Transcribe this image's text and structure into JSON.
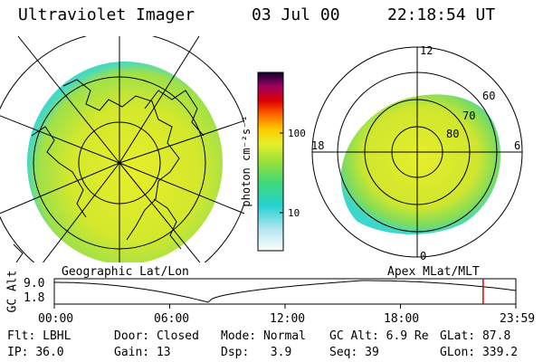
{
  "header": {
    "instrument": "Ultraviolet Imager",
    "date": "03 Jul 00",
    "time": "22:18:54 UT"
  },
  "colorbar": {
    "unit_label": "photon cm⁻²s⁻¹",
    "ticks": [
      "100",
      "10"
    ]
  },
  "polar_plot": {
    "ring_labels": [
      "60",
      "70",
      "80"
    ],
    "mlt_labels": {
      "top": "12",
      "left": "18",
      "right": "6",
      "bottom": "0"
    }
  },
  "panel_titles": {
    "left": "Geographic Lat/Lon",
    "right": "Apex MLat/MLT"
  },
  "altitude_strip": {
    "axis_label": "GC Alt",
    "y_ticks": [
      "9.0",
      "1.8"
    ],
    "x_ticks": [
      "00:00",
      "06:00",
      "12:00",
      "18:00",
      "23:59"
    ],
    "current_time_marker_hour": 22.3
  },
  "status": {
    "row1": [
      {
        "label": "Flt:",
        "value": "LBHL"
      },
      {
        "label": "Door:",
        "value": "Closed"
      },
      {
        "label": "Mode:",
        "value": "Normal"
      },
      {
        "label": "GC Alt:",
        "value": "6.9 Re"
      },
      {
        "label": "GLat:",
        "value": "87.8"
      }
    ],
    "row2": [
      {
        "label": "IP:",
        "value": "36.0"
      },
      {
        "label": "Gain:",
        "value": "13"
      },
      {
        "label": "Dsp:",
        "value": "3.9"
      },
      {
        "label": "Seq:",
        "value": "39"
      },
      {
        "label": "GLon:",
        "value": "339.2"
      }
    ]
  },
  "colors": {
    "marker": "#e00000",
    "emission_main": "#d8ea2a",
    "emission_edge": "#2cd3cf"
  }
}
